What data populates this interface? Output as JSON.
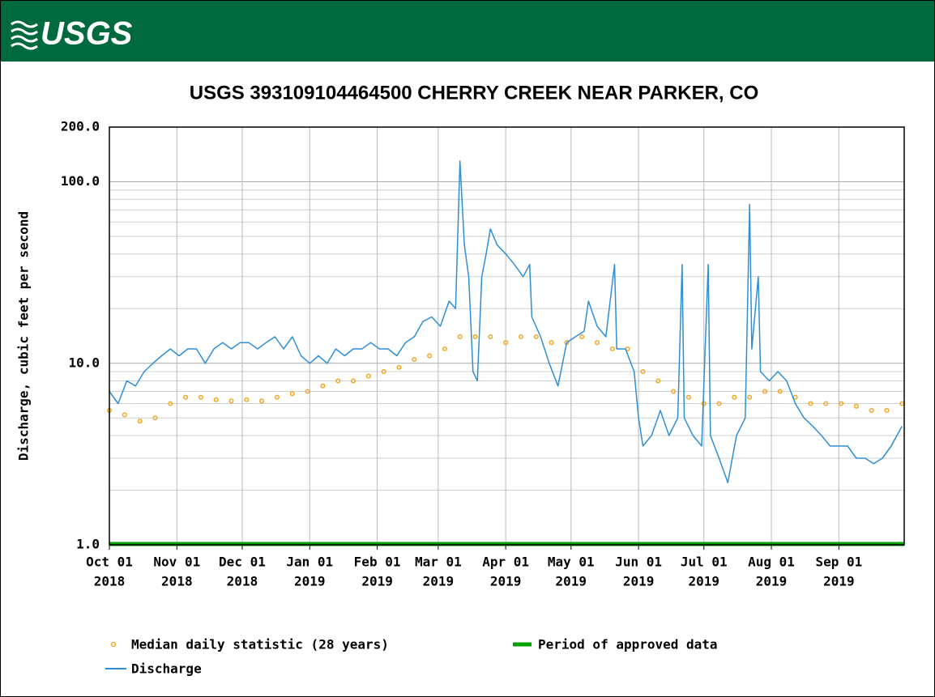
{
  "header": {
    "logo": "USGS"
  },
  "chart_data": {
    "type": "line",
    "title": "USGS 393109104464500 CHERRY CREEK NEAR PARKER, CO",
    "ylabel": "Discharge, cubic feet per second",
    "log_y": true,
    "grid": true,
    "ylim": [
      1,
      200
    ],
    "yticks": [
      {
        "value": 1,
        "label": "1.0"
      },
      {
        "value": 10,
        "label": "10.0"
      },
      {
        "value": 100,
        "label": "100.0"
      },
      {
        "value": 200,
        "label": "200.0"
      }
    ],
    "yminor": [
      2,
      3,
      4,
      5,
      6,
      7,
      8,
      9,
      20,
      30,
      40,
      50,
      60,
      70,
      80,
      90
    ],
    "xlim": [
      "2018-10-01",
      "2019-10-01"
    ],
    "xticks": [
      {
        "value": "2018-10-01",
        "label": [
          "Oct 01",
          "2018"
        ]
      },
      {
        "value": "2018-11-01",
        "label": [
          "Nov 01",
          "2018"
        ]
      },
      {
        "value": "2018-12-01",
        "label": [
          "Dec 01",
          "2018"
        ]
      },
      {
        "value": "2019-01-01",
        "label": [
          "Jan 01",
          "2019"
        ]
      },
      {
        "value": "2019-02-01",
        "label": [
          "Feb 01",
          "2019"
        ]
      },
      {
        "value": "2019-03-01",
        "label": [
          "Mar 01",
          "2019"
        ]
      },
      {
        "value": "2019-04-01",
        "label": [
          "Apr 01",
          "2019"
        ]
      },
      {
        "value": "2019-05-01",
        "label": [
          "May 01",
          "2019"
        ]
      },
      {
        "value": "2019-06-01",
        "label": [
          "Jun 01",
          "2019"
        ]
      },
      {
        "value": "2019-07-01",
        "label": [
          "Jul 01",
          "2019"
        ]
      },
      {
        "value": "2019-08-01",
        "label": [
          "Aug 01",
          "2019"
        ]
      },
      {
        "value": "2019-09-01",
        "label": [
          "Sep 01",
          "2019"
        ]
      }
    ],
    "series": [
      {
        "name": "Median daily statistic (28 years)",
        "color": "#f5a623",
        "style": "points",
        "x": [
          "2018-10-01",
          "2018-10-08",
          "2018-10-15",
          "2018-10-22",
          "2018-10-29",
          "2018-11-05",
          "2018-11-12",
          "2018-11-19",
          "2018-11-26",
          "2018-12-03",
          "2018-12-10",
          "2018-12-17",
          "2018-12-24",
          "2018-12-31",
          "2019-01-07",
          "2019-01-14",
          "2019-01-21",
          "2019-01-28",
          "2019-02-04",
          "2019-02-11",
          "2019-02-18",
          "2019-02-25",
          "2019-03-04",
          "2019-03-11",
          "2019-03-18",
          "2019-03-25",
          "2019-04-01",
          "2019-04-08",
          "2019-04-15",
          "2019-04-22",
          "2019-04-29",
          "2019-05-06",
          "2019-05-13",
          "2019-05-20",
          "2019-05-27",
          "2019-06-03",
          "2019-06-10",
          "2019-06-17",
          "2019-06-24",
          "2019-07-01",
          "2019-07-08",
          "2019-07-15",
          "2019-07-22",
          "2019-07-29",
          "2019-08-05",
          "2019-08-12",
          "2019-08-19",
          "2019-08-26",
          "2019-09-02",
          "2019-09-09",
          "2019-09-16",
          "2019-09-23",
          "2019-09-30"
        ],
        "values": [
          5.5,
          5.2,
          4.8,
          5,
          6,
          6.5,
          6.5,
          6.3,
          6.2,
          6.3,
          6.2,
          6.5,
          6.8,
          7,
          7.5,
          8,
          8,
          8.5,
          9,
          9.5,
          10.5,
          11,
          12,
          14,
          14,
          14,
          13,
          14,
          14,
          13,
          13,
          14,
          13,
          12,
          12,
          9,
          8,
          7,
          6.5,
          6,
          6,
          6.5,
          6.5,
          7,
          7,
          6.5,
          6,
          6,
          6,
          5.8,
          5.5,
          5.5,
          6
        ]
      },
      {
        "name": "Discharge",
        "color": "#2f8fd4",
        "style": "line",
        "x": [
          "2018-10-01",
          "2018-10-05",
          "2018-10-09",
          "2018-10-13",
          "2018-10-17",
          "2018-10-21",
          "2018-10-25",
          "2018-10-29",
          "2018-11-02",
          "2018-11-06",
          "2018-11-10",
          "2018-11-14",
          "2018-11-18",
          "2018-11-22",
          "2018-11-26",
          "2018-11-30",
          "2018-12-04",
          "2018-12-08",
          "2018-12-12",
          "2018-12-16",
          "2018-12-20",
          "2018-12-24",
          "2018-12-28",
          "2019-01-01",
          "2019-01-05",
          "2019-01-09",
          "2019-01-13",
          "2019-01-17",
          "2019-01-21",
          "2019-01-25",
          "2019-01-29",
          "2019-02-02",
          "2019-02-06",
          "2019-02-10",
          "2019-02-14",
          "2019-02-18",
          "2019-02-22",
          "2019-02-26",
          "2019-03-02",
          "2019-03-06",
          "2019-03-09",
          "2019-03-11",
          "2019-03-13",
          "2019-03-15",
          "2019-03-17",
          "2019-03-19",
          "2019-03-21",
          "2019-03-23",
          "2019-03-25",
          "2019-03-28",
          "2019-04-01",
          "2019-04-05",
          "2019-04-09",
          "2019-04-12",
          "2019-04-13",
          "2019-04-17",
          "2019-04-21",
          "2019-04-25",
          "2019-04-29",
          "2019-05-03",
          "2019-05-07",
          "2019-05-09",
          "2019-05-13",
          "2019-05-17",
          "2019-05-21",
          "2019-05-22",
          "2019-05-26",
          "2019-05-30",
          "2019-06-01",
          "2019-06-03",
          "2019-06-07",
          "2019-06-11",
          "2019-06-15",
          "2019-06-19",
          "2019-06-21",
          "2019-06-22",
          "2019-06-26",
          "2019-06-30",
          "2019-07-03",
          "2019-07-04",
          "2019-07-08",
          "2019-07-12",
          "2019-07-16",
          "2019-07-20",
          "2019-07-22",
          "2019-07-23",
          "2019-07-26",
          "2019-07-27",
          "2019-07-31",
          "2019-08-04",
          "2019-08-08",
          "2019-08-12",
          "2019-08-16",
          "2019-08-20",
          "2019-08-24",
          "2019-08-28",
          "2019-09-01",
          "2019-09-05",
          "2019-09-09",
          "2019-09-13",
          "2019-09-17",
          "2019-09-21",
          "2019-09-25",
          "2019-09-30"
        ],
        "values": [
          7,
          6,
          8,
          7.5,
          9,
          10,
          11,
          12,
          11,
          12,
          12,
          10,
          12,
          13,
          12,
          13,
          13,
          12,
          13,
          14,
          12,
          14,
          11,
          10,
          11,
          10,
          12,
          11,
          12,
          12,
          13,
          12,
          12,
          11,
          13,
          14,
          17,
          18,
          16,
          22,
          20,
          130,
          45,
          30,
          9,
          8,
          30,
          40,
          55,
          45,
          40,
          35,
          30,
          35,
          18,
          14,
          10,
          7.5,
          13,
          14,
          15,
          22,
          16,
          14,
          35,
          12,
          12,
          9,
          5,
          3.5,
          4,
          5.5,
          4,
          5,
          35,
          5,
          4,
          3.5,
          35,
          4,
          3,
          2.2,
          4,
          5,
          75,
          12,
          30,
          9,
          8,
          9,
          8,
          6,
          5,
          4.5,
          4,
          3.5,
          3.5,
          3.5,
          3,
          3,
          2.8,
          3,
          3.5,
          4.5
        ]
      }
    ],
    "approved": {
      "name": "Period of approved data",
      "color": "#00a000",
      "x": [
        "2018-10-01",
        "2019-10-01"
      ]
    }
  }
}
